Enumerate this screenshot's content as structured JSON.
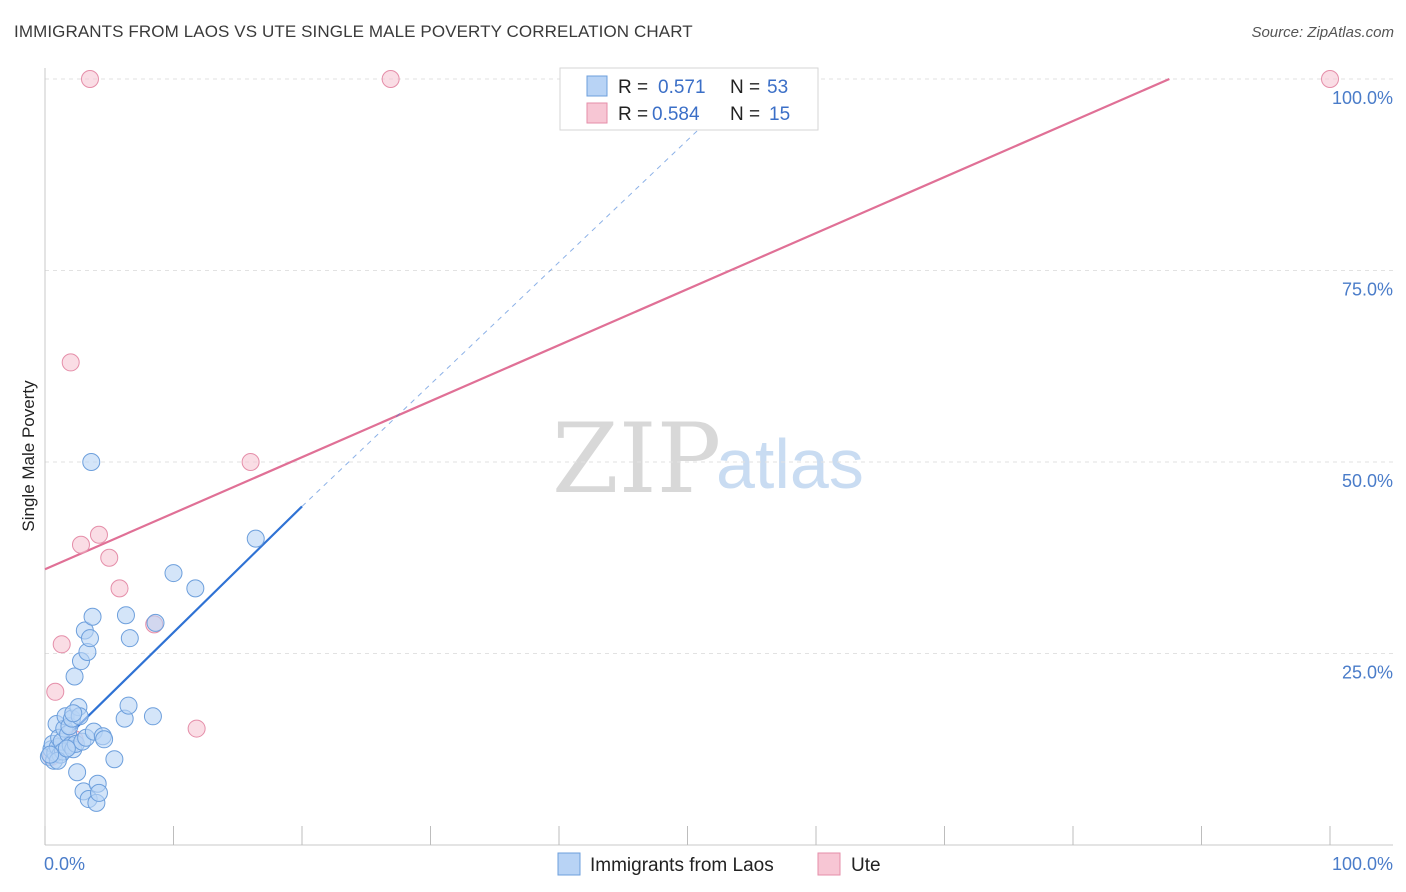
{
  "title": "IMMIGRANTS FROM LAOS VS UTE SINGLE MALE POVERTY CORRELATION CHART",
  "source": "Source: ZipAtlas.com",
  "watermark": {
    "zip": "ZIP",
    "atlas": "atlas"
  },
  "colors": {
    "blue_fill": "#b8d3f5",
    "blue_stroke": "#6d9fdc",
    "blue_line": "#2f72d4",
    "pink_fill": "#f7c6d4",
    "pink_stroke": "#e58ea9",
    "pink_line": "#e07096",
    "grid": "#e2e2e2",
    "tick_label": "#4a7cc9"
  },
  "legend": {
    "rows": [
      {
        "r_label": "R =",
        "r_value": "0.571",
        "n_label": "N =",
        "n_value": "53"
      },
      {
        "r_label": "R =",
        "r_value": "0.584",
        "n_label": "N =",
        "n_value": "15"
      }
    ]
  },
  "bottom_legend": [
    "Immigrants from Laos",
    "Ute"
  ],
  "chart_data": {
    "type": "scatter",
    "title": "IMMIGRANTS FROM LAOS VS UTE SINGLE MALE POVERTY CORRELATION CHART",
    "xlabel": "",
    "ylabel": "Single Male Poverty",
    "xlim": [
      0,
      100
    ],
    "ylim": [
      0,
      100
    ],
    "x_tick_labels": [
      "0.0%",
      "100.0%"
    ],
    "y_ticks": [
      25,
      50,
      75,
      100
    ],
    "y_tick_labels": [
      "25.0%",
      "50.0%",
      "75.0%",
      "100.0%"
    ],
    "grid": true,
    "series": [
      {
        "name": "Immigrants from Laos",
        "r": 0.571,
        "n": 53,
        "points": [
          [
            0.3,
            11.5
          ],
          [
            0.5,
            12.5
          ],
          [
            0.6,
            13.2
          ],
          [
            0.7,
            11.0
          ],
          [
            0.8,
            12.0
          ],
          [
            0.9,
            15.8
          ],
          [
            1.0,
            12.8
          ],
          [
            1.1,
            14.0
          ],
          [
            1.2,
            11.8
          ],
          [
            1.3,
            13.5
          ],
          [
            1.4,
            12.2
          ],
          [
            1.5,
            15.2
          ],
          [
            1.6,
            16.8
          ],
          [
            1.8,
            14.5
          ],
          [
            1.9,
            15.5
          ],
          [
            2.0,
            13.0
          ],
          [
            2.1,
            16.5
          ],
          [
            2.2,
            12.5
          ],
          [
            2.3,
            22.0
          ],
          [
            2.4,
            13.2
          ],
          [
            2.5,
            9.5
          ],
          [
            2.6,
            18.0
          ],
          [
            2.7,
            16.8
          ],
          [
            2.8,
            24.0
          ],
          [
            2.9,
            13.5
          ],
          [
            3.0,
            7.0
          ],
          [
            3.1,
            28.0
          ],
          [
            3.2,
            14.0
          ],
          [
            3.3,
            25.2
          ],
          [
            3.4,
            6.0
          ],
          [
            3.5,
            27.0
          ],
          [
            3.6,
            50.0
          ],
          [
            3.7,
            29.8
          ],
          [
            3.8,
            14.8
          ],
          [
            4.0,
            5.5
          ],
          [
            4.1,
            8.0
          ],
          [
            4.2,
            6.8
          ],
          [
            4.5,
            14.2
          ],
          [
            4.6,
            13.8
          ],
          [
            5.4,
            11.2
          ],
          [
            6.2,
            16.5
          ],
          [
            6.3,
            30.0
          ],
          [
            6.5,
            18.2
          ],
          [
            6.6,
            27.0
          ],
          [
            8.4,
            16.8
          ],
          [
            8.6,
            29.0
          ],
          [
            10.0,
            35.5
          ],
          [
            11.7,
            33.5
          ],
          [
            16.4,
            40.0
          ],
          [
            1.0,
            11.0
          ],
          [
            0.4,
            11.8
          ],
          [
            1.7,
            12.6
          ],
          [
            2.2,
            17.2
          ]
        ],
        "trend": {
          "x0": 0.0,
          "y0": 11.3,
          "x1": 20.0,
          "y1": 44.2,
          "dashed_to_x": 55.0,
          "dashed_to_y": 100.0
        }
      },
      {
        "name": "Ute",
        "r": 0.584,
        "n": 15,
        "points": [
          [
            0.5,
            11.5
          ],
          [
            0.8,
            20.0
          ],
          [
            1.3,
            26.2
          ],
          [
            2.0,
            63.0
          ],
          [
            2.3,
            13.8
          ],
          [
            2.8,
            39.2
          ],
          [
            3.5,
            100.0
          ],
          [
            4.2,
            40.5
          ],
          [
            5.0,
            37.5
          ],
          [
            5.8,
            33.5
          ],
          [
            8.5,
            28.8
          ],
          [
            11.8,
            15.2
          ],
          [
            16.0,
            50.0
          ],
          [
            26.9,
            100.0
          ],
          [
            100.0,
            100.0
          ]
        ],
        "trend": {
          "x0": 0.0,
          "y0": 36.0,
          "x1": 87.5,
          "y1": 100.0
        }
      }
    ]
  }
}
